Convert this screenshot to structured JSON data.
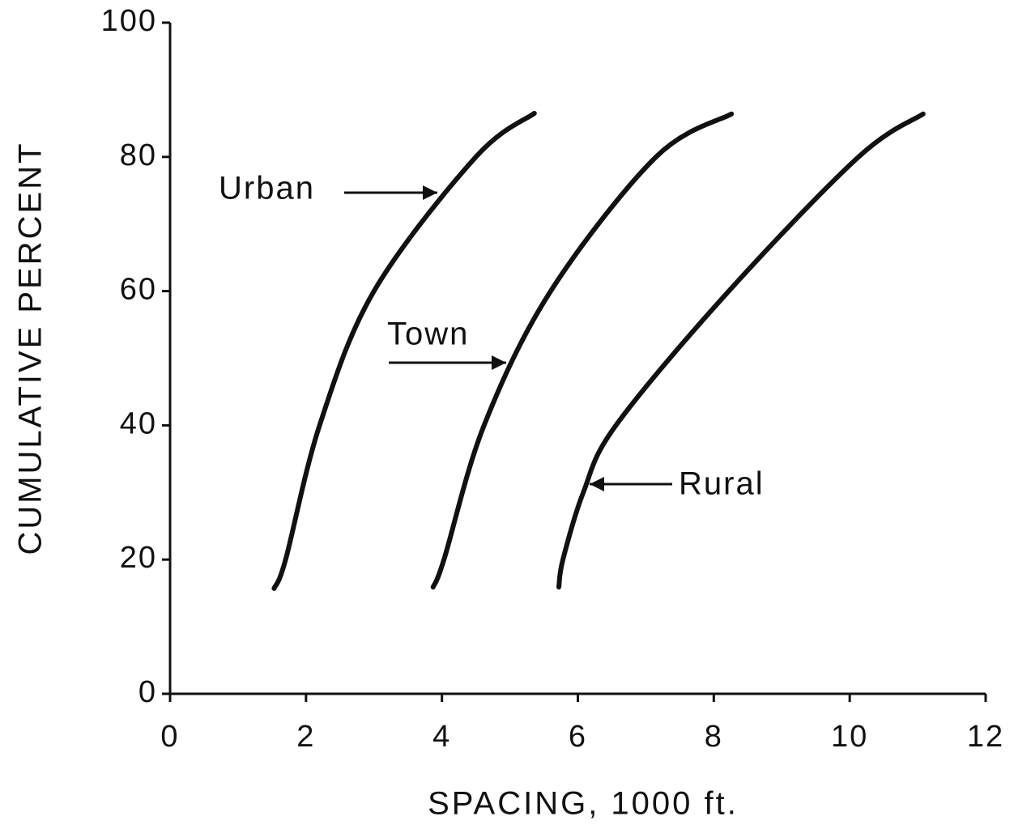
{
  "chart_data": {
    "type": "line",
    "xlabel": "SPACING, 1000 ft.",
    "ylabel": "CUMULATIVE PERCENT",
    "xlim": [
      0,
      12
    ],
    "xticks": [
      0,
      2,
      4,
      6,
      8,
      10,
      12
    ],
    "ylim": [
      0,
      100
    ],
    "yticks": [
      0,
      20,
      40,
      60,
      80,
      100
    ],
    "grid": false,
    "series": [
      {
        "name": "Urban",
        "color": "#111111",
        "x": [
          1.53,
          1.7,
          2.2,
          3.0,
          4.5,
          5.36
        ],
        "values": [
          15.7,
          20,
          40,
          60,
          80,
          86.5
        ]
      },
      {
        "name": "Town",
        "color": "#111111",
        "x": [
          3.87,
          4.03,
          4.62,
          5.6,
          7.15,
          8.26
        ],
        "values": [
          15.9,
          20,
          40,
          60,
          80,
          86.4
        ]
      },
      {
        "name": "Rural",
        "color": "#111111",
        "x": [
          5.72,
          5.78,
          6.08,
          6.56,
          8.22,
          10.13,
          11.08
        ],
        "values": [
          15.9,
          20,
          30,
          40,
          60,
          80,
          86.4
        ]
      }
    ]
  }
}
